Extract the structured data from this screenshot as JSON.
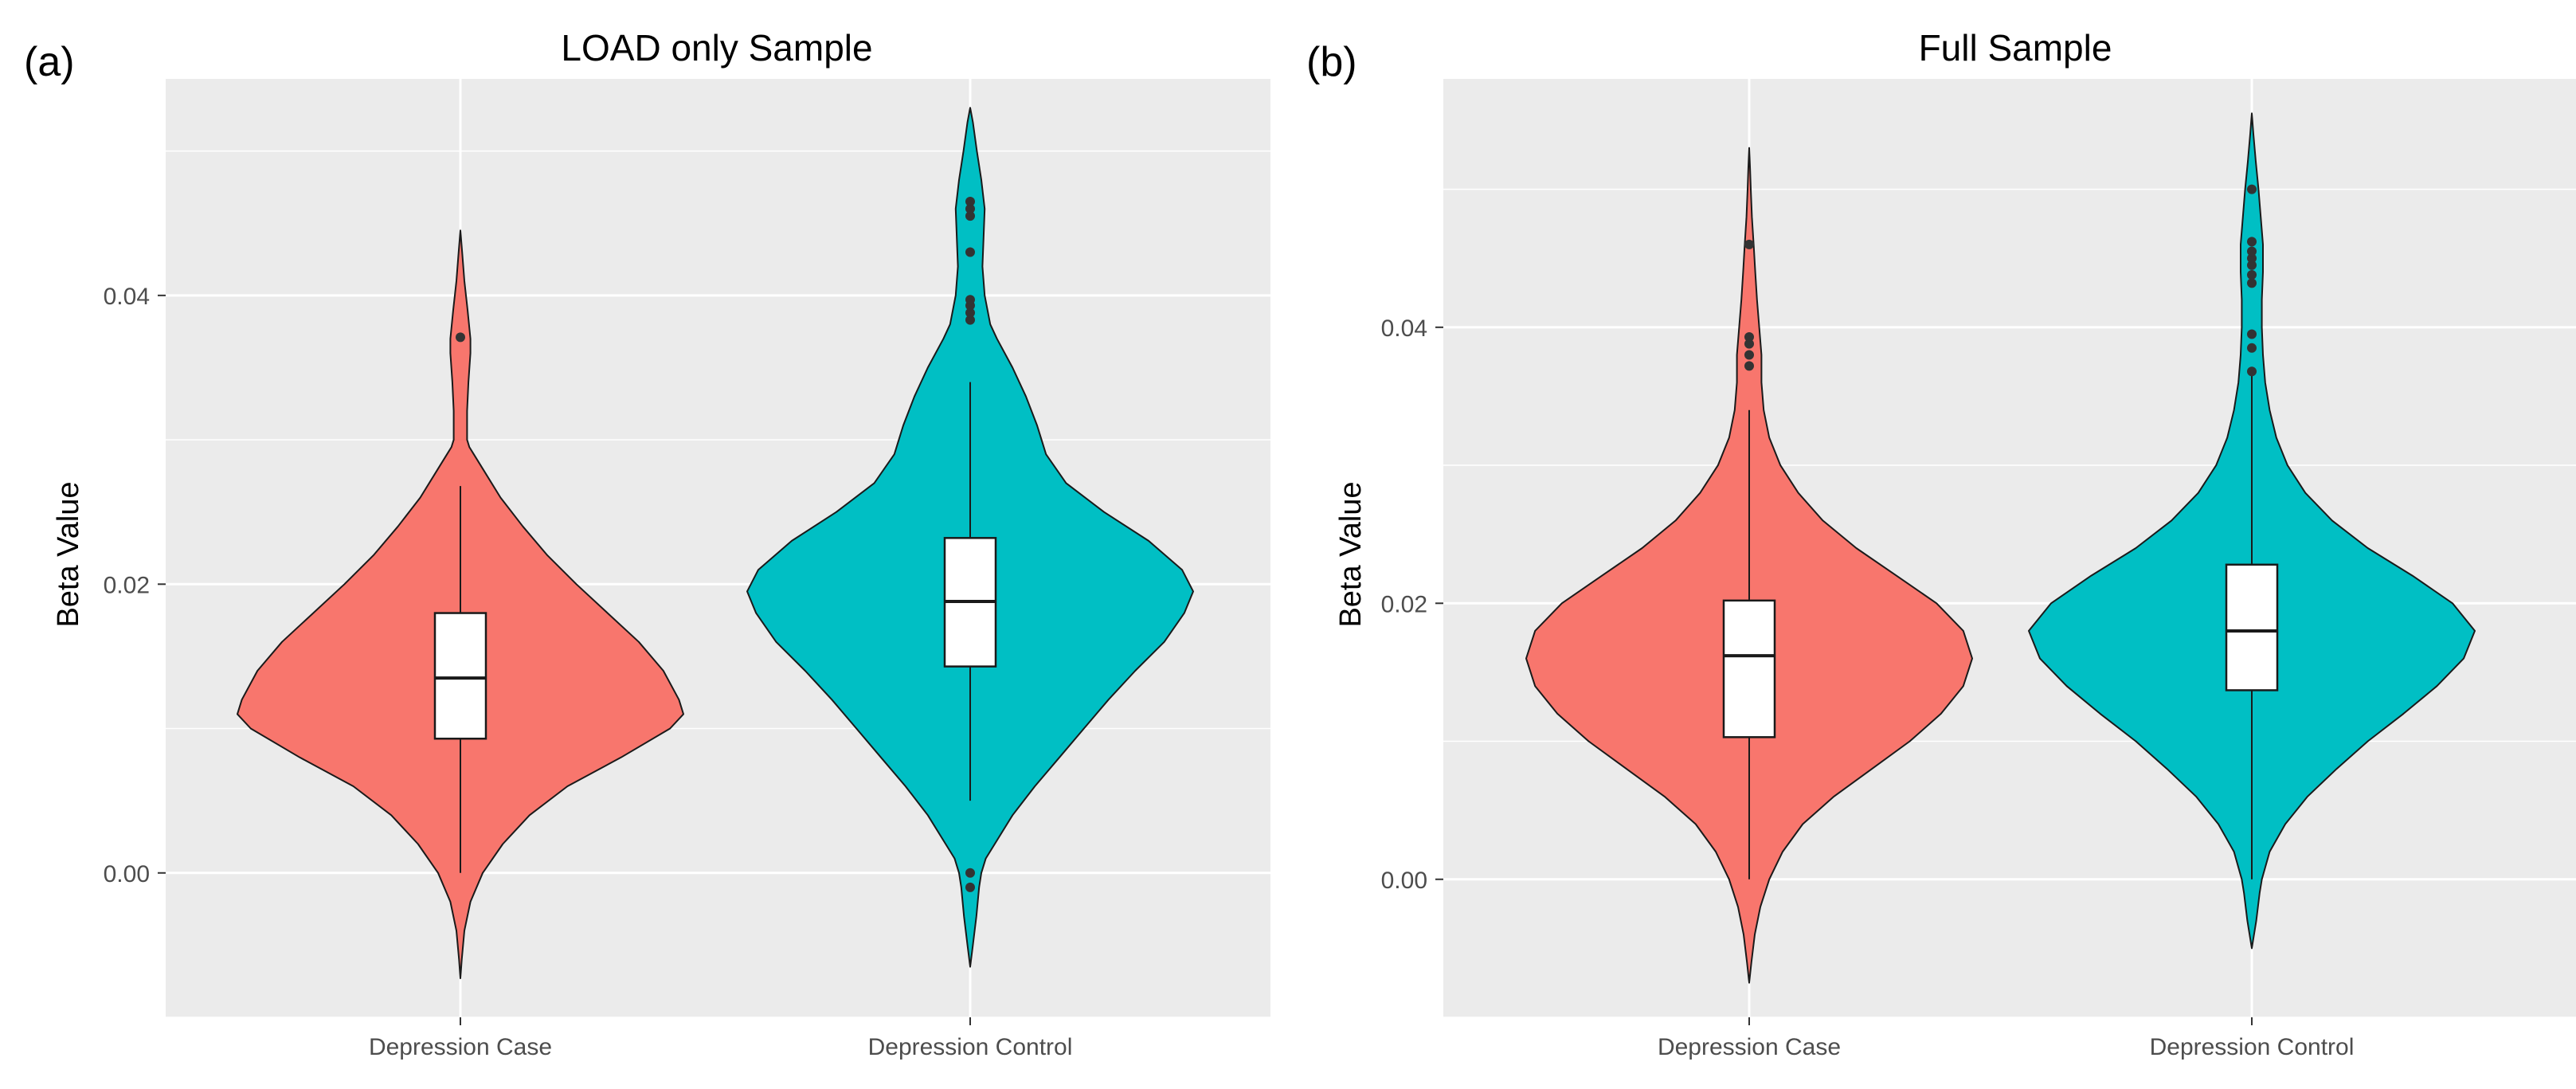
{
  "chart_data": [
    {
      "type": "violin",
      "panel_label": "(a)",
      "title": "LOAD only Sample",
      "xlabel": "",
      "ylabel": "Beta Value",
      "ylim": [
        -0.01,
        0.055
      ],
      "y_ticks": [
        0.0,
        0.02,
        0.04
      ],
      "y_tick_labels": [
        "0.00",
        "0.02",
        "0.04"
      ],
      "grid": true,
      "legend": "none",
      "categories": [
        "Depression Case",
        "Depression Control"
      ],
      "colors": [
        "#F8766D",
        "#00BFC4"
      ],
      "series": [
        {
          "category": "Depression Case",
          "box": {
            "lower_whisker": 0.0,
            "q1": 0.0093,
            "median": 0.0135,
            "q3": 0.018,
            "upper_whisker": 0.0268
          },
          "outliers": [
            0.0371
          ],
          "density": [
            [
              -0.0073,
              0.0
            ],
            [
              -0.006,
              0.006
            ],
            [
              -0.004,
              0.018
            ],
            [
              -0.002,
              0.045
            ],
            [
              0.0,
              0.1
            ],
            [
              0.002,
              0.19
            ],
            [
              0.004,
              0.31
            ],
            [
              0.006,
              0.48
            ],
            [
              0.008,
              0.72
            ],
            [
              0.01,
              0.94
            ],
            [
              0.011,
              1.0
            ],
            [
              0.012,
              0.98
            ],
            [
              0.014,
              0.91
            ],
            [
              0.016,
              0.8
            ],
            [
              0.018,
              0.66
            ],
            [
              0.02,
              0.52
            ],
            [
              0.022,
              0.39
            ],
            [
              0.024,
              0.28
            ],
            [
              0.026,
              0.18
            ],
            [
              0.028,
              0.1
            ],
            [
              0.029,
              0.06
            ],
            [
              0.0295,
              0.04
            ],
            [
              0.03,
              0.03
            ],
            [
              0.032,
              0.03
            ],
            [
              0.034,
              0.036
            ],
            [
              0.036,
              0.045
            ],
            [
              0.037,
              0.045
            ],
            [
              0.039,
              0.032
            ],
            [
              0.041,
              0.018
            ],
            [
              0.043,
              0.008
            ],
            [
              0.0445,
              0.0
            ]
          ]
        },
        {
          "category": "Depression Control",
          "box": {
            "lower_whisker": 0.005,
            "q1": 0.0143,
            "median": 0.0188,
            "q3": 0.0232,
            "upper_whisker": 0.034
          },
          "outliers": [
            0.0383,
            0.0388,
            0.0393,
            0.0397,
            0.043,
            0.0455,
            0.046,
            0.0465,
            0.0,
            -0.001
          ],
          "density": [
            [
              -0.0065,
              0.0
            ],
            [
              -0.005,
              0.012
            ],
            [
              -0.003,
              0.028
            ],
            [
              -0.001,
              0.04
            ],
            [
              0.0,
              0.05
            ],
            [
              0.001,
              0.07
            ],
            [
              0.002,
              0.11
            ],
            [
              0.004,
              0.19
            ],
            [
              0.006,
              0.29
            ],
            [
              0.008,
              0.4
            ],
            [
              0.01,
              0.51
            ],
            [
              0.012,
              0.62
            ],
            [
              0.014,
              0.74
            ],
            [
              0.016,
              0.87
            ],
            [
              0.018,
              0.96
            ],
            [
              0.0195,
              1.0
            ],
            [
              0.021,
              0.95
            ],
            [
              0.023,
              0.8
            ],
            [
              0.025,
              0.6
            ],
            [
              0.027,
              0.43
            ],
            [
              0.029,
              0.34
            ],
            [
              0.03,
              0.32
            ],
            [
              0.031,
              0.3
            ],
            [
              0.033,
              0.25
            ],
            [
              0.035,
              0.19
            ],
            [
              0.037,
              0.12
            ],
            [
              0.038,
              0.09
            ],
            [
              0.04,
              0.065
            ],
            [
              0.042,
              0.055
            ],
            [
              0.044,
              0.06
            ],
            [
              0.046,
              0.065
            ],
            [
              0.048,
              0.05
            ],
            [
              0.05,
              0.03
            ],
            [
              0.052,
              0.012
            ],
            [
              0.053,
              0.0
            ]
          ]
        }
      ]
    },
    {
      "type": "violin",
      "panel_label": "(b)",
      "title": "Full Sample",
      "xlabel": "",
      "ylabel": "Beta Value",
      "ylim": [
        -0.01,
        0.058
      ],
      "y_ticks": [
        0.0,
        0.02,
        0.04
      ],
      "y_tick_labels": [
        "0.00",
        "0.02",
        "0.04"
      ],
      "grid": true,
      "legend": "none",
      "categories": [
        "Depression Case",
        "Depression Control"
      ],
      "colors": [
        "#F8766D",
        "#00BFC4"
      ],
      "series": [
        {
          "category": "Depression Case",
          "box": {
            "lower_whisker": 0.0,
            "q1": 0.0103,
            "median": 0.0162,
            "q3": 0.0202,
            "upper_whisker": 0.034
          },
          "outliers": [
            0.0372,
            0.038,
            0.0388,
            0.0393,
            0.046
          ],
          "density": [
            [
              -0.0075,
              0.0
            ],
            [
              -0.006,
              0.01
            ],
            [
              -0.004,
              0.025
            ],
            [
              -0.002,
              0.05
            ],
            [
              0.0,
              0.09
            ],
            [
              0.002,
              0.15
            ],
            [
              0.004,
              0.24
            ],
            [
              0.006,
              0.38
            ],
            [
              0.008,
              0.55
            ],
            [
              0.01,
              0.72
            ],
            [
              0.012,
              0.86
            ],
            [
              0.014,
              0.96
            ],
            [
              0.016,
              1.0
            ],
            [
              0.018,
              0.96
            ],
            [
              0.02,
              0.84
            ],
            [
              0.022,
              0.66
            ],
            [
              0.024,
              0.48
            ],
            [
              0.026,
              0.33
            ],
            [
              0.028,
              0.22
            ],
            [
              0.03,
              0.14
            ],
            [
              0.032,
              0.09
            ],
            [
              0.034,
              0.065
            ],
            [
              0.036,
              0.055
            ],
            [
              0.038,
              0.055
            ],
            [
              0.04,
              0.045
            ],
            [
              0.042,
              0.035
            ],
            [
              0.044,
              0.027
            ],
            [
              0.046,
              0.02
            ],
            [
              0.048,
              0.012
            ],
            [
              0.05,
              0.007
            ],
            [
              0.0515,
              0.004
            ],
            [
              0.053,
              0.0
            ]
          ]
        },
        {
          "category": "Depression Control",
          "box": {
            "lower_whisker": 0.0,
            "q1": 0.0137,
            "median": 0.018,
            "q3": 0.0228,
            "upper_whisker": 0.0365
          },
          "outliers": [
            0.0368,
            0.0385,
            0.0395,
            0.0432,
            0.0438,
            0.0445,
            0.045,
            0.0455,
            0.0462,
            0.05
          ],
          "density": [
            [
              -0.005,
              0.0
            ],
            [
              -0.003,
              0.02
            ],
            [
              -0.001,
              0.035
            ],
            [
              0.0,
              0.045
            ],
            [
              0.002,
              0.08
            ],
            [
              0.004,
              0.15
            ],
            [
              0.006,
              0.25
            ],
            [
              0.008,
              0.38
            ],
            [
              0.01,
              0.52
            ],
            [
              0.012,
              0.68
            ],
            [
              0.014,
              0.83
            ],
            [
              0.016,
              0.95
            ],
            [
              0.018,
              1.0
            ],
            [
              0.02,
              0.9
            ],
            [
              0.022,
              0.72
            ],
            [
              0.024,
              0.52
            ],
            [
              0.026,
              0.36
            ],
            [
              0.028,
              0.24
            ],
            [
              0.03,
              0.16
            ],
            [
              0.032,
              0.11
            ],
            [
              0.034,
              0.08
            ],
            [
              0.036,
              0.06
            ],
            [
              0.038,
              0.05
            ],
            [
              0.04,
              0.045
            ],
            [
              0.042,
              0.045
            ],
            [
              0.044,
              0.05
            ],
            [
              0.046,
              0.05
            ],
            [
              0.048,
              0.04
            ],
            [
              0.05,
              0.03
            ],
            [
              0.052,
              0.018
            ],
            [
              0.054,
              0.007
            ],
            [
              0.0555,
              0.0
            ]
          ]
        }
      ]
    }
  ]
}
